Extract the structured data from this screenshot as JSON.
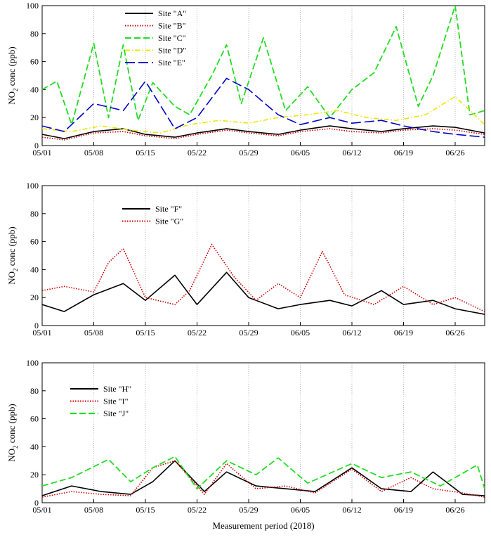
{
  "figure": {
    "xlabel": "Measurement period (2018)",
    "ylabel_main": "NO",
    "ylabel_sub": "2",
    "ylabel_rest": " conc (ppb)"
  },
  "chart_data": [
    {
      "type": "line",
      "title": "",
      "xlabel": "",
      "ylabel": "NO2 conc (ppb)",
      "x_range": [
        "2018-05-01",
        "2018-06-30"
      ],
      "xticks": [
        "05/01",
        "05/08",
        "05/15",
        "05/22",
        "05/29",
        "06/05",
        "06/12",
        "06/19",
        "06/26"
      ],
      "ylim": [
        0,
        100
      ],
      "yticks": [
        0,
        20,
        40,
        60,
        80,
        100
      ],
      "grid": "vertical dotted at x ticks",
      "legend": "top-left",
      "series": [
        {
          "name": "Site \"A\"",
          "color": "#000000",
          "dash": "solid",
          "width": 1.6,
          "x": [
            "2018-05-01",
            "2018-05-04",
            "2018-05-08",
            "2018-05-12",
            "2018-05-15",
            "2018-05-19",
            "2018-05-22",
            "2018-05-26",
            "2018-05-29",
            "2018-06-02",
            "2018-06-05",
            "2018-06-09",
            "2018-06-12",
            "2018-06-16",
            "2018-06-19",
            "2018-06-23",
            "2018-06-26",
            "2018-06-30"
          ],
          "values": [
            8,
            5,
            10,
            12,
            8,
            6,
            9,
            12,
            10,
            8,
            11,
            14,
            12,
            10,
            12,
            14,
            13,
            9
          ]
        },
        {
          "name": "Site \"B\"",
          "color": "#cc0000",
          "dash": "dotted",
          "width": 1.6,
          "x": [
            "2018-05-01",
            "2018-05-04",
            "2018-05-08",
            "2018-05-12",
            "2018-05-15",
            "2018-05-19",
            "2018-05-22",
            "2018-05-26",
            "2018-05-29",
            "2018-06-02",
            "2018-06-05",
            "2018-06-09",
            "2018-06-12",
            "2018-06-16",
            "2018-06-19",
            "2018-06-23",
            "2018-06-26",
            "2018-06-30"
          ],
          "values": [
            6,
            4,
            9,
            10,
            7,
            5,
            8,
            11,
            9,
            7,
            10,
            12,
            10,
            9,
            11,
            12,
            11,
            8
          ]
        },
        {
          "name": "Site \"C\"",
          "color": "#22dd22",
          "dash": "dashed",
          "width": 1.8,
          "x": [
            "2018-05-01",
            "2018-05-03",
            "2018-05-05",
            "2018-05-08",
            "2018-05-10",
            "2018-05-12",
            "2018-05-14",
            "2018-05-16",
            "2018-05-19",
            "2018-05-21",
            "2018-05-24",
            "2018-05-26",
            "2018-05-28",
            "2018-05-31",
            "2018-06-03",
            "2018-06-06",
            "2018-06-09",
            "2018-06-12",
            "2018-06-15",
            "2018-06-18",
            "2018-06-21",
            "2018-06-23",
            "2018-06-26",
            "2018-06-28",
            "2018-06-30"
          ],
          "values": [
            40,
            46,
            15,
            73,
            20,
            72,
            18,
            45,
            28,
            22,
            50,
            72,
            30,
            77,
            25,
            42,
            20,
            40,
            52,
            85,
            28,
            50,
            100,
            22,
            25
          ]
        },
        {
          "name": "Site \"D\"",
          "color": "#e8e800",
          "dash": "dash-dot",
          "width": 1.6,
          "x": [
            "2018-05-01",
            "2018-05-05",
            "2018-05-09",
            "2018-05-13",
            "2018-05-17",
            "2018-05-21",
            "2018-05-25",
            "2018-05-29",
            "2018-06-02",
            "2018-06-06",
            "2018-06-10",
            "2018-06-14",
            "2018-06-18",
            "2018-06-22",
            "2018-06-26",
            "2018-06-30"
          ],
          "values": [
            12,
            10,
            14,
            11,
            9,
            15,
            18,
            16,
            20,
            22,
            25,
            20,
            18,
            22,
            35,
            15
          ]
        },
        {
          "name": "Site \"E\"",
          "color": "#0000cc",
          "dash": "long-dash",
          "width": 1.6,
          "x": [
            "2018-05-01",
            "2018-05-04",
            "2018-05-08",
            "2018-05-12",
            "2018-05-15",
            "2018-05-19",
            "2018-05-22",
            "2018-05-26",
            "2018-05-29",
            "2018-06-02",
            "2018-06-05",
            "2018-06-09",
            "2018-06-12",
            "2018-06-16",
            "2018-06-19",
            "2018-06-23",
            "2018-06-26",
            "2018-06-30"
          ],
          "values": [
            14,
            10,
            30,
            25,
            46,
            12,
            20,
            48,
            40,
            22,
            15,
            20,
            16,
            18,
            14,
            10,
            8,
            6
          ]
        }
      ]
    },
    {
      "type": "line",
      "title": "",
      "xlabel": "",
      "ylabel": "NO2 conc (ppb)",
      "x_range": [
        "2018-05-01",
        "2018-06-30"
      ],
      "xticks": [
        "05/01",
        "05/08",
        "05/15",
        "05/22",
        "05/29",
        "06/05",
        "06/12",
        "06/19",
        "06/26"
      ],
      "ylim": [
        0,
        100
      ],
      "yticks": [
        0,
        20,
        40,
        60,
        80,
        100
      ],
      "grid": "vertical dotted at x ticks",
      "legend": "top-left",
      "series": [
        {
          "name": "Site \"F\"",
          "color": "#000000",
          "dash": "solid",
          "width": 1.6,
          "x": [
            "2018-05-01",
            "2018-05-04",
            "2018-05-08",
            "2018-05-12",
            "2018-05-15",
            "2018-05-19",
            "2018-05-22",
            "2018-05-26",
            "2018-05-29",
            "2018-06-02",
            "2018-06-05",
            "2018-06-09",
            "2018-06-12",
            "2018-06-16",
            "2018-06-19",
            "2018-06-23",
            "2018-06-26",
            "2018-06-30"
          ],
          "values": [
            15,
            10,
            22,
            30,
            18,
            36,
            15,
            38,
            20,
            12,
            15,
            18,
            14,
            25,
            15,
            18,
            12,
            8
          ]
        },
        {
          "name": "Site \"G\"",
          "color": "#cc0000",
          "dash": "dotted",
          "width": 1.6,
          "x": [
            "2018-05-01",
            "2018-05-04",
            "2018-05-08",
            "2018-05-10",
            "2018-05-12",
            "2018-05-15",
            "2018-05-19",
            "2018-05-21",
            "2018-05-24",
            "2018-05-27",
            "2018-05-30",
            "2018-06-02",
            "2018-06-05",
            "2018-06-08",
            "2018-06-11",
            "2018-06-15",
            "2018-06-19",
            "2018-06-23",
            "2018-06-26",
            "2018-06-30"
          ],
          "values": [
            25,
            28,
            24,
            45,
            55,
            20,
            15,
            25,
            58,
            35,
            18,
            30,
            20,
            53,
            22,
            15,
            28,
            15,
            20,
            10
          ]
        }
      ]
    },
    {
      "type": "line",
      "title": "",
      "xlabel": "Measurement period (2018)",
      "ylabel": "NO2 conc (ppb)",
      "x_range": [
        "2018-05-01",
        "2018-06-30"
      ],
      "xticks": [
        "05/01",
        "05/08",
        "05/15",
        "05/22",
        "05/29",
        "06/05",
        "06/12",
        "06/19",
        "06/26"
      ],
      "ylim": [
        0,
        100
      ],
      "yticks": [
        0,
        20,
        40,
        60,
        80,
        100
      ],
      "grid": "vertical dotted at x ticks",
      "legend": "top-left",
      "series": [
        {
          "name": "Site \"H\"",
          "color": "#000000",
          "dash": "solid",
          "width": 1.6,
          "x": [
            "2018-05-01",
            "2018-05-05",
            "2018-05-09",
            "2018-05-13",
            "2018-05-16",
            "2018-05-19",
            "2018-05-23",
            "2018-05-26",
            "2018-05-30",
            "2018-06-03",
            "2018-06-07",
            "2018-06-12",
            "2018-06-16",
            "2018-06-20",
            "2018-06-23",
            "2018-06-27",
            "2018-06-30"
          ],
          "values": [
            5,
            12,
            8,
            6,
            15,
            30,
            8,
            22,
            12,
            10,
            8,
            25,
            10,
            8,
            22,
            6,
            5
          ]
        },
        {
          "name": "Site \"I\"",
          "color": "#cc0000",
          "dash": "dotted",
          "width": 1.6,
          "x": [
            "2018-05-01",
            "2018-05-05",
            "2018-05-09",
            "2018-05-13",
            "2018-05-16",
            "2018-05-19",
            "2018-05-23",
            "2018-05-26",
            "2018-05-30",
            "2018-06-03",
            "2018-06-07",
            "2018-06-12",
            "2018-06-16",
            "2018-06-20",
            "2018-06-23",
            "2018-06-27",
            "2018-06-30"
          ],
          "values": [
            4,
            8,
            6,
            5,
            25,
            30,
            6,
            28,
            10,
            12,
            7,
            24,
            8,
            18,
            10,
            7,
            4
          ]
        },
        {
          "name": "Site \"J\"",
          "color": "#22dd22",
          "dash": "dashed",
          "width": 1.8,
          "x": [
            "2018-05-01",
            "2018-05-05",
            "2018-05-10",
            "2018-05-13",
            "2018-05-16",
            "2018-05-19",
            "2018-05-22",
            "2018-05-26",
            "2018-05-30",
            "2018-06-02",
            "2018-06-06",
            "2018-06-12",
            "2018-06-16",
            "2018-06-20",
            "2018-06-24",
            "2018-06-29",
            "2018-06-30"
          ],
          "values": [
            12,
            18,
            31,
            15,
            25,
            33,
            10,
            30,
            20,
            32,
            14,
            28,
            18,
            22,
            12,
            27,
            10
          ]
        }
      ]
    }
  ]
}
